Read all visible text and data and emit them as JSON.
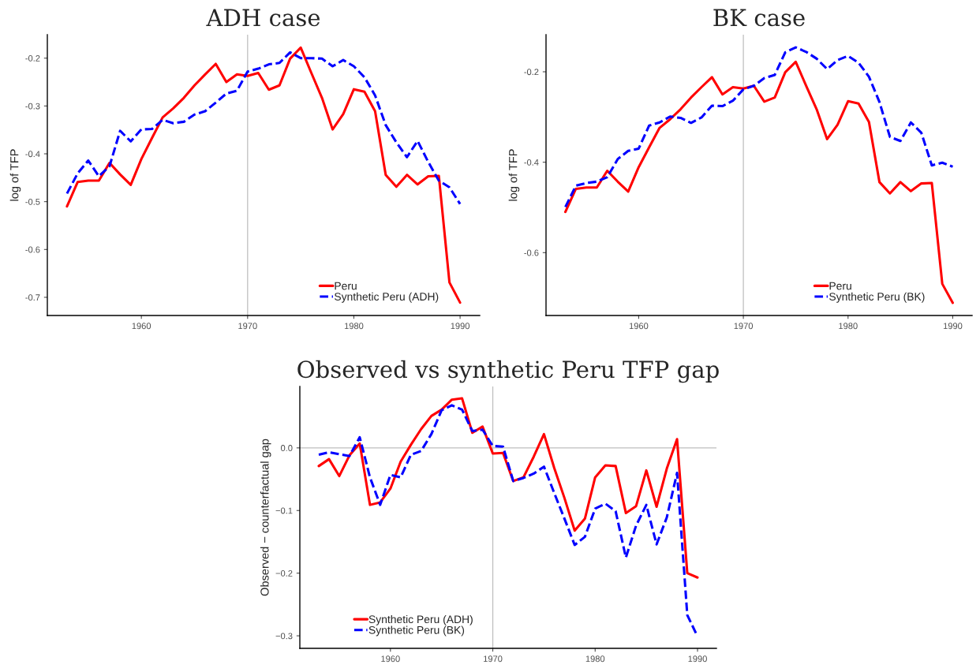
{
  "chart_data": [
    {
      "type": "line",
      "title": "ADH case",
      "ylabel": "log of TFP",
      "x": [
        1953,
        1954,
        1955,
        1956,
        1957,
        1958,
        1959,
        1960,
        1961,
        1962,
        1963,
        1964,
        1965,
        1966,
        1967,
        1968,
        1969,
        1970,
        1971,
        1972,
        1973,
        1974,
        1975,
        1976,
        1977,
        1978,
        1979,
        1980,
        1981,
        1982,
        1983,
        1984,
        1985,
        1986,
        1987,
        1988,
        1989,
        1990
      ],
      "series": [
        {
          "name": "Peru",
          "color": "#ff0000",
          "line_style": "solid",
          "values": [
            -0.51,
            -0.459,
            -0.456,
            -0.456,
            -0.419,
            -0.443,
            -0.465,
            -0.411,
            -0.367,
            -0.324,
            -0.305,
            -0.283,
            -0.257,
            -0.234,
            -0.212,
            -0.25,
            -0.234,
            -0.237,
            -0.231,
            -0.266,
            -0.257,
            -0.201,
            -0.178,
            -0.231,
            -0.283,
            -0.349,
            -0.317,
            -0.265,
            -0.27,
            -0.311,
            -0.444,
            -0.469,
            -0.444,
            -0.464,
            -0.447,
            -0.446,
            -0.669,
            -0.711
          ]
        },
        {
          "name": "Synthetic Peru (ADH)",
          "color": "#0000ff",
          "line_style": "dashed",
          "values": [
            -0.483,
            -0.441,
            -0.414,
            -0.447,
            -0.426,
            -0.352,
            -0.374,
            -0.349,
            -0.348,
            -0.329,
            -0.336,
            -0.333,
            -0.318,
            -0.311,
            -0.293,
            -0.274,
            -0.268,
            -0.228,
            -0.222,
            -0.213,
            -0.21,
            -0.188,
            -0.2,
            -0.2,
            -0.201,
            -0.217,
            -0.204,
            -0.217,
            -0.24,
            -0.278,
            -0.34,
            -0.376,
            -0.407,
            -0.373,
            -0.417,
            -0.456,
            -0.47,
            -0.505
          ]
        }
      ],
      "xlim": [
        1951.15,
        1991.85
      ],
      "xticks": [
        1960,
        1970,
        1980,
        1990
      ],
      "ylim": [
        -0.738,
        -0.151
      ],
      "yticks": [
        -0.7,
        -0.6,
        -0.5,
        -0.4,
        -0.3,
        -0.2
      ],
      "ref_lines": [
        {
          "axis": "x",
          "value": 1970,
          "color": "#bebebe"
        }
      ],
      "legend": "bottom right",
      "grid": false
    },
    {
      "type": "line",
      "title": "BK case",
      "ylabel": "log of TFP",
      "x": [
        1953,
        1954,
        1955,
        1956,
        1957,
        1958,
        1959,
        1960,
        1961,
        1962,
        1963,
        1964,
        1965,
        1966,
        1967,
        1968,
        1969,
        1970,
        1971,
        1972,
        1973,
        1974,
        1975,
        1976,
        1977,
        1978,
        1979,
        1980,
        1981,
        1982,
        1983,
        1984,
        1985,
        1986,
        1987,
        1988,
        1989,
        1990
      ],
      "series": [
        {
          "name": "Peru",
          "color": "#ff0000",
          "line_style": "solid",
          "values": [
            -0.51,
            -0.459,
            -0.456,
            -0.456,
            -0.419,
            -0.443,
            -0.465,
            -0.411,
            -0.367,
            -0.324,
            -0.305,
            -0.283,
            -0.257,
            -0.234,
            -0.212,
            -0.25,
            -0.234,
            -0.237,
            -0.231,
            -0.266,
            -0.257,
            -0.201,
            -0.178,
            -0.231,
            -0.283,
            -0.349,
            -0.317,
            -0.265,
            -0.27,
            -0.311,
            -0.444,
            -0.469,
            -0.444,
            -0.464,
            -0.447,
            -0.446,
            -0.669,
            -0.711
          ]
        },
        {
          "name": "Synthetic Peru (BK)",
          "color": "#0000ff",
          "line_style": "dashed",
          "values": [
            -0.499,
            -0.452,
            -0.446,
            -0.443,
            -0.433,
            -0.393,
            -0.375,
            -0.37,
            -0.319,
            -0.312,
            -0.299,
            -0.302,
            -0.313,
            -0.301,
            -0.275,
            -0.276,
            -0.264,
            -0.239,
            -0.231,
            -0.214,
            -0.207,
            -0.157,
            -0.146,
            -0.156,
            -0.171,
            -0.194,
            -0.174,
            -0.165,
            -0.18,
            -0.211,
            -0.267,
            -0.344,
            -0.353,
            -0.312,
            -0.335,
            -0.407,
            -0.401,
            -0.41
          ]
        }
      ],
      "xlim": [
        1951.15,
        1991.85
      ],
      "xticks": [
        1960,
        1970,
        1980,
        1990
      ],
      "ylim": [
        -0.739,
        -0.118
      ],
      "yticks": [
        -0.6,
        -0.4,
        -0.2
      ],
      "ref_lines": [
        {
          "axis": "x",
          "value": 1970,
          "color": "#bebebe"
        }
      ],
      "legend": "bottom right",
      "grid": false
    },
    {
      "type": "line",
      "title": "Observed vs synthetic Peru TFP gap",
      "ylabel": "Observed − counterfactual gap",
      "x": [
        1953,
        1954,
        1955,
        1956,
        1957,
        1958,
        1959,
        1960,
        1961,
        1962,
        1963,
        1964,
        1965,
        1966,
        1967,
        1968,
        1969,
        1970,
        1971,
        1972,
        1973,
        1974,
        1975,
        1976,
        1977,
        1978,
        1979,
        1980,
        1981,
        1982,
        1983,
        1984,
        1985,
        1986,
        1987,
        1988,
        1989,
        1990
      ],
      "series": [
        {
          "name": "Synthetic Peru (ADH)",
          "color": "#ff0000",
          "line_style": "solid",
          "values": [
            -0.029,
            -0.018,
            -0.045,
            -0.012,
            0.007,
            -0.091,
            -0.087,
            -0.065,
            -0.022,
            0.005,
            0.03,
            0.051,
            0.061,
            0.077,
            0.079,
            0.024,
            0.034,
            -0.009,
            -0.008,
            -0.053,
            -0.047,
            -0.014,
            0.022,
            -0.032,
            -0.08,
            -0.132,
            -0.113,
            -0.047,
            -0.028,
            -0.029,
            -0.104,
            -0.093,
            -0.036,
            -0.094,
            -0.033,
            0.014,
            -0.2,
            -0.207
          ]
        },
        {
          "name": "Synthetic Peru (BK)",
          "color": "#0000ff",
          "line_style": "dashed",
          "values": [
            -0.011,
            -0.007,
            -0.01,
            -0.013,
            0.017,
            -0.047,
            -0.091,
            -0.043,
            -0.047,
            -0.011,
            -0.005,
            0.022,
            0.06,
            0.068,
            0.061,
            0.027,
            0.029,
            0.003,
            0.002,
            -0.053,
            -0.048,
            -0.041,
            -0.03,
            -0.072,
            -0.113,
            -0.155,
            -0.142,
            -0.097,
            -0.089,
            -0.101,
            -0.175,
            -0.124,
            -0.091,
            -0.154,
            -0.111,
            -0.04,
            -0.267,
            -0.301
          ]
        }
      ],
      "xlim": [
        1951.15,
        1991.85
      ],
      "xticks": [
        1960,
        1970,
        1980,
        1990
      ],
      "ylim": [
        -0.32,
        0.098
      ],
      "yticks": [
        {
          "value": -0.3,
          "label": "−0.3"
        },
        {
          "value": -0.2,
          "label": "−0.2"
        },
        {
          "value": -0.1,
          "label": "−0.1"
        },
        {
          "value": 0.0,
          "label": "0.0"
        }
      ],
      "ref_lines": [
        {
          "axis": "x",
          "value": 1970,
          "color": "#bebebe"
        },
        {
          "axis": "y",
          "value": 0.0,
          "color": "#bebebe"
        }
      ],
      "legend": "bottom left",
      "grid": false
    }
  ]
}
